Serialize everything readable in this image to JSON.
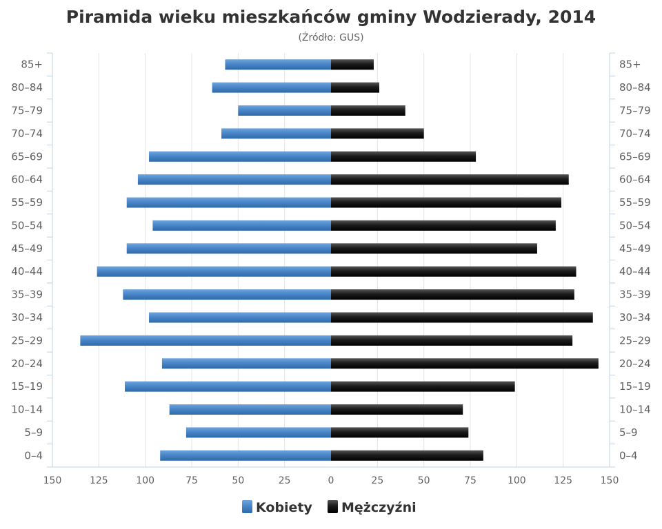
{
  "chart_data": {
    "type": "bar",
    "orientation": "horizontal",
    "layout": "population-pyramid",
    "title": "Piramida wieku mieszkańców gminy Wodzierady, 2014",
    "subtitle": "(Źródło: GUS)",
    "categories": [
      "0–4",
      "5–9",
      "10–14",
      "15–19",
      "20–24",
      "25–29",
      "30–34",
      "35–39",
      "40–44",
      "45–49",
      "50–54",
      "55–59",
      "60–64",
      "65–69",
      "70–74",
      "75–79",
      "80–84",
      "85+"
    ],
    "series": [
      {
        "name": "Kobiety",
        "side": "left",
        "color": "#4a86c8",
        "values": [
          92,
          78,
          87,
          111,
          91,
          135,
          98,
          112,
          126,
          110,
          96,
          110,
          104,
          98,
          59,
          50,
          64,
          57
        ]
      },
      {
        "name": "Mężczyźni",
        "side": "right",
        "color": "#1a1a1a",
        "values": [
          82,
          74,
          71,
          99,
          144,
          130,
          141,
          131,
          132,
          111,
          121,
          124,
          128,
          78,
          50,
          40,
          26,
          23
        ]
      }
    ],
    "xlim": [
      -150,
      150
    ],
    "x_ticks": [
      -150,
      -125,
      -100,
      -75,
      -50,
      -25,
      0,
      25,
      50,
      75,
      100,
      125,
      150
    ],
    "x_tick_labels": [
      "150",
      "125",
      "100",
      "75",
      "50",
      "25",
      "0",
      "25",
      "50",
      "75",
      "100",
      "125",
      "150"
    ],
    "grid": true,
    "legend": "bottom-center"
  }
}
